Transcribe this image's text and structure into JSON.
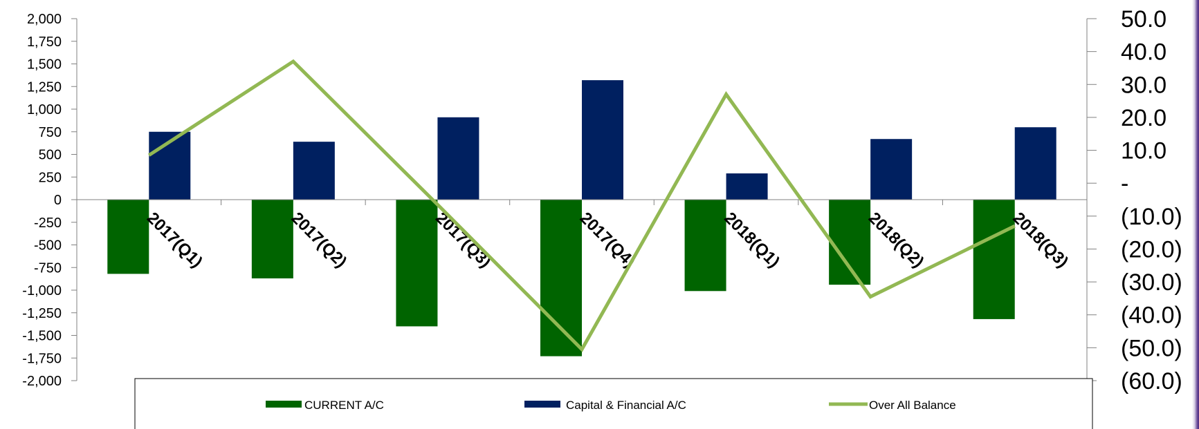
{
  "chart_data": {
    "type": "bar",
    "categories": [
      "2017(Q1)",
      "2017(Q2)",
      "2017(Q3)",
      "2017(Q4)",
      "2018(Q1)",
      "2018(Q2)",
      "2018(Q3)"
    ],
    "series": [
      {
        "name": "CURRENT A/C",
        "type": "bar",
        "axis": "left",
        "color": "#006400",
        "values": [
          -820,
          -870,
          -1400,
          -1730,
          -1010,
          -940,
          -1320
        ]
      },
      {
        "name": "Capital & Financial A/C",
        "type": "bar",
        "axis": "left",
        "color": "#002060",
        "values": [
          750,
          640,
          910,
          1320,
          290,
          670,
          800
        ]
      },
      {
        "name": "Over All Balance",
        "type": "line",
        "axis": "right",
        "color": "#92B853",
        "values": [
          8.5,
          37.0,
          -6.5,
          -50.5,
          27.0,
          -34.5,
          -13.0
        ]
      }
    ],
    "yaxis_left": {
      "min": -2000,
      "max": 2000,
      "ticks": [
        2000,
        1750,
        1500,
        1250,
        1000,
        750,
        500,
        250,
        0,
        -250,
        -500,
        -750,
        -1000,
        -1250,
        -1500,
        -1750,
        -2000
      ],
      "tick_labels": [
        "2,000",
        "1,750",
        "1,500",
        "1,250",
        "1,000",
        "750",
        "500",
        "250",
        "0",
        "-250",
        "-500",
        "-750",
        "-1,000",
        "-1,250",
        "-1,500",
        "-1,750",
        "-2,000"
      ]
    },
    "yaxis_right": {
      "min": -60,
      "max": 50,
      "ticks": [
        50,
        40,
        30,
        20,
        10,
        0,
        -10,
        -20,
        -30,
        -40,
        -50,
        -60
      ],
      "tick_labels": [
        "50.0",
        "40.0",
        "30.0",
        "20.0",
        "10.0",
        "-",
        "(10.0)",
        "(20.0)",
        "(30.0)",
        "(40.0)",
        "(50.0)",
        "(60.0)"
      ]
    },
    "legend": {
      "placement": "bottom"
    },
    "grid": false
  }
}
